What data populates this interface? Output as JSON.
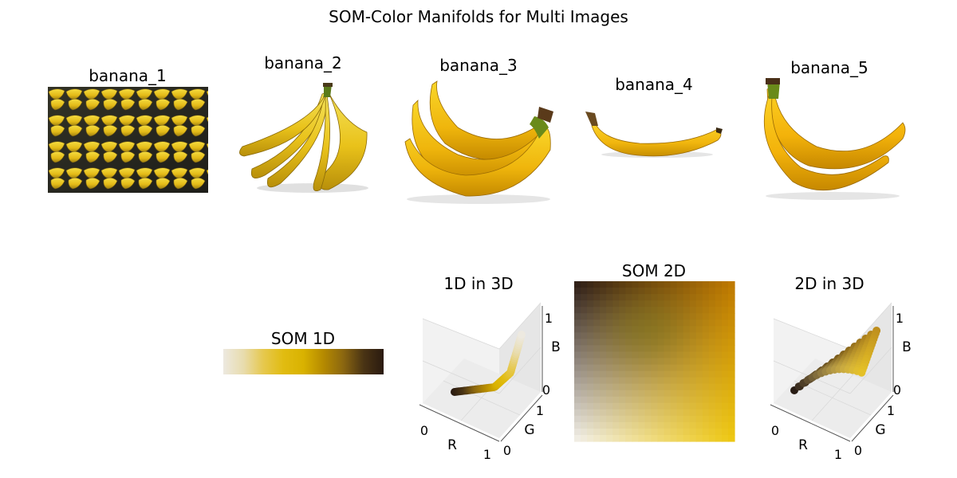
{
  "figure": {
    "title": "SOM-Color Manifolds for Multi Images"
  },
  "images": [
    {
      "label": "banana_1",
      "icon": "banana-bunches-photo"
    },
    {
      "label": "banana_2",
      "icon": "banana-bunch-icon"
    },
    {
      "label": "banana_3",
      "icon": "banana-bunch-icon"
    },
    {
      "label": "banana_4",
      "icon": "single-banana-icon"
    },
    {
      "label": "banana_5",
      "icon": "banana-pair-icon"
    }
  ],
  "chart_data": [
    {
      "type": "heatmap",
      "title": "SOM 1D",
      "colors": [
        "#ede9e0",
        "#e8dcae",
        "#e6c84e",
        "#e1bc11",
        "#d9b200",
        "#b58a00",
        "#8a6610",
        "#4a3414",
        "#2a1a10"
      ]
    },
    {
      "type": "line",
      "title": "1D in 3D",
      "xlabel": "R",
      "ylabel": "G",
      "zlabel": "B",
      "xticks": [
        "0",
        "1"
      ],
      "yticks": [
        "0",
        "1"
      ],
      "zticks": [
        "0",
        "1"
      ],
      "xlim": [
        0,
        1
      ],
      "ylim": [
        0,
        1
      ],
      "zlim": [
        0,
        1
      ]
    },
    {
      "type": "heatmap",
      "title": "SOM 2D",
      "corners": {
        "top_left": "#2a1a14",
        "top_right": "#c07a00",
        "bottom_left": "#f4f2ec",
        "bottom_right": "#eec810"
      }
    },
    {
      "type": "scatter",
      "title": "2D in 3D",
      "xlabel": "R",
      "ylabel": "G",
      "zlabel": "B",
      "xticks": [
        "0",
        "1"
      ],
      "yticks": [
        "0",
        "1"
      ],
      "zticks": [
        "0",
        "1"
      ],
      "xlim": [
        0,
        1
      ],
      "ylim": [
        0,
        1
      ],
      "zlim": [
        0,
        1
      ]
    }
  ]
}
